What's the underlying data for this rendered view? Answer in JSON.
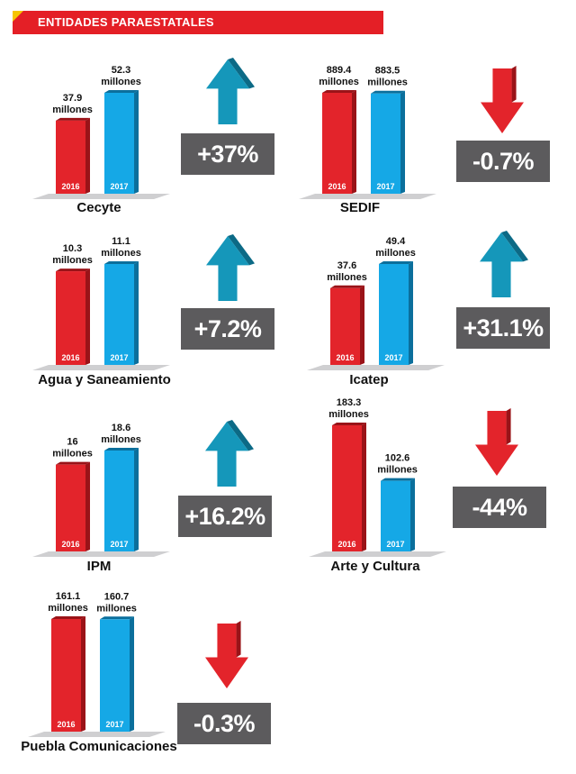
{
  "header": {
    "title": "ENTIDADES PARAESTATALES"
  },
  "colors": {
    "bar2016": "#e3242b",
    "bar2017": "#15a8e6",
    "up": "#1597ba",
    "down": "#e3242b",
    "box": "#5c5b5d"
  },
  "chart_data": [
    {
      "type": "bar",
      "title": "Cecyte",
      "categories": [
        "2016",
        "2017"
      ],
      "values": [
        37.9,
        52.3
      ],
      "labels": [
        "37.9",
        "52.3"
      ],
      "unit": "millones",
      "change": "+37%",
      "direction": "up"
    },
    {
      "type": "bar",
      "title": "SEDIF",
      "categories": [
        "2016",
        "2017"
      ],
      "values": [
        889.4,
        883.5
      ],
      "labels": [
        "889.4",
        "883.5"
      ],
      "unit": "millones",
      "change": "-0.7%",
      "direction": "down"
    },
    {
      "type": "bar",
      "title": "Agua y Saneamiento",
      "categories": [
        "2016",
        "2017"
      ],
      "values": [
        10.3,
        11.1
      ],
      "labels": [
        "10.3",
        "11.1"
      ],
      "unit": "millones",
      "change": "+7.2%",
      "direction": "up"
    },
    {
      "type": "bar",
      "title": "Icatep",
      "categories": [
        "2016",
        "2017"
      ],
      "values": [
        37.6,
        49.4
      ],
      "labels": [
        "37.6",
        "49.4"
      ],
      "unit": "millones",
      "change": "+31.1%",
      "direction": "up"
    },
    {
      "type": "bar",
      "title": "IPM",
      "categories": [
        "2016",
        "2017"
      ],
      "values": [
        16,
        18.6
      ],
      "labels": [
        "16",
        "18.6"
      ],
      "unit": "millones",
      "change": "+16.2%",
      "direction": "up"
    },
    {
      "type": "bar",
      "title": "Arte y Cultura",
      "categories": [
        "2016",
        "2017"
      ],
      "values": [
        183.3,
        102.6
      ],
      "labels": [
        "183.3",
        "102.6"
      ],
      "unit": "millones",
      "change": "-44%",
      "direction": "down"
    },
    {
      "type": "bar",
      "title": "Puebla Comunicaciones",
      "categories": [
        "2016",
        "2017"
      ],
      "values": [
        161.1,
        160.7
      ],
      "labels": [
        "161.1",
        "160.7"
      ],
      "unit": "millones",
      "change": "-0.3%",
      "direction": "down"
    }
  ]
}
